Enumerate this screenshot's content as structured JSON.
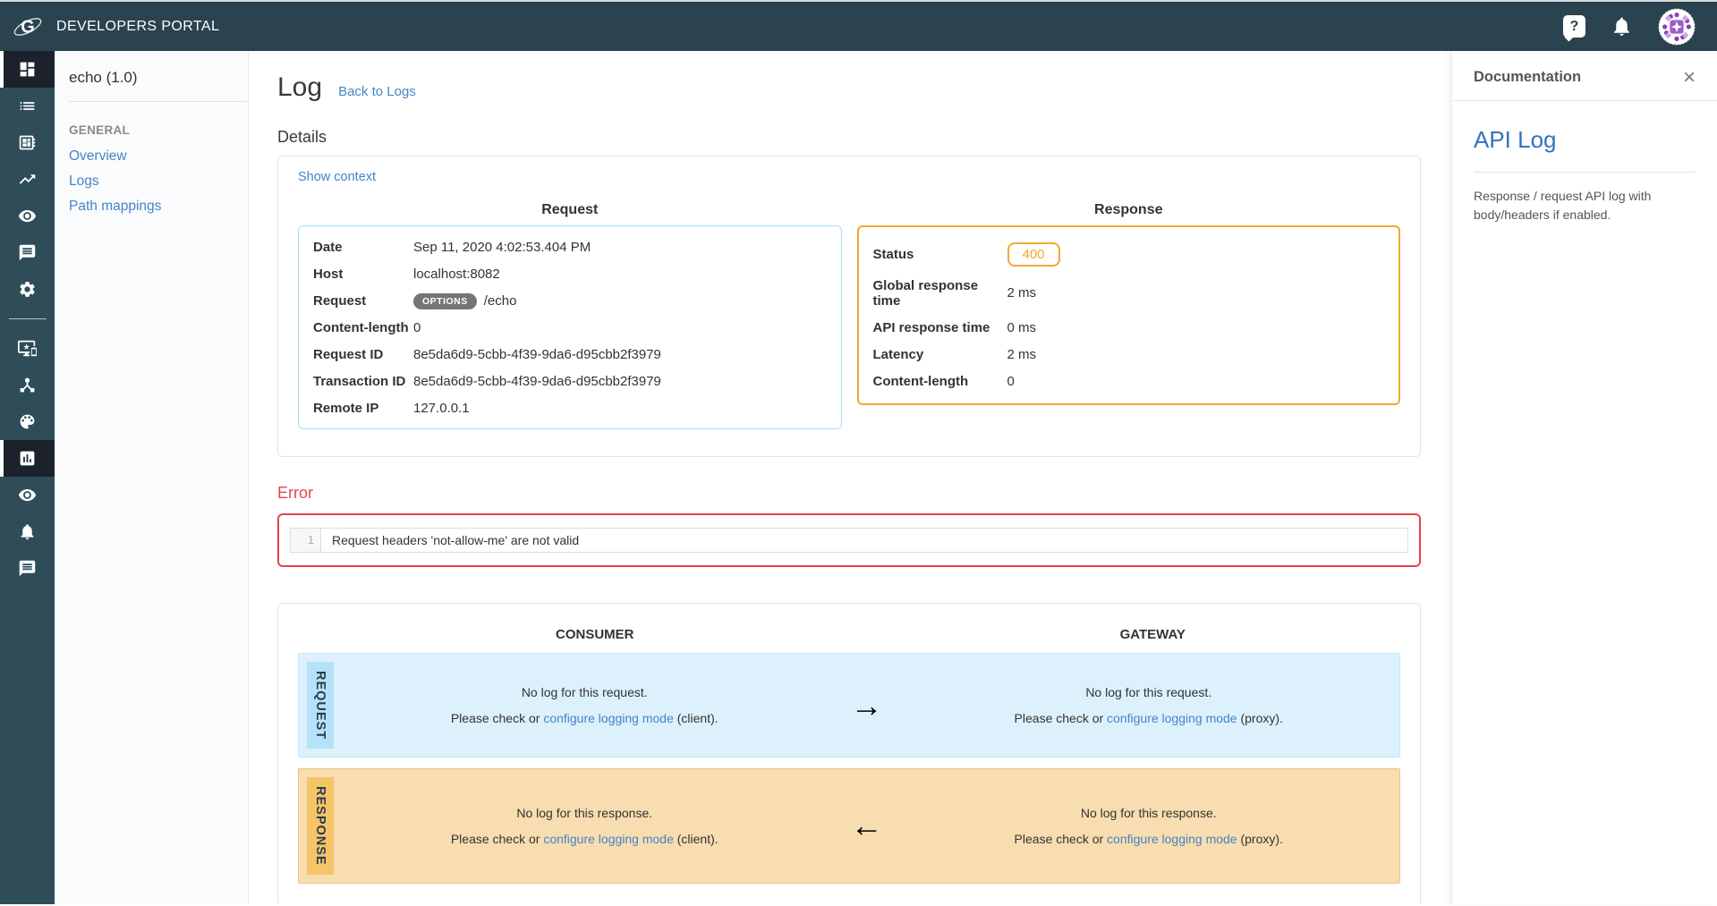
{
  "topbar": {
    "title": "DEVELOPERS PORTAL"
  },
  "rail": {
    "items": [
      {
        "icon": "dashboard",
        "name": "dashboard-icon",
        "active": true
      },
      {
        "icon": "list",
        "name": "list-icon",
        "active": false
      },
      {
        "icon": "board",
        "name": "board-icon",
        "active": false
      },
      {
        "icon": "trending",
        "name": "trending-up-icon",
        "active": false
      },
      {
        "icon": "eye",
        "name": "eye-icon",
        "active": false
      },
      {
        "icon": "message",
        "name": "chat-icon",
        "active": false
      },
      {
        "icon": "gear",
        "name": "gear-icon",
        "active": false
      },
      {
        "icon": "divider",
        "name": "rail-divider"
      },
      {
        "icon": "devices",
        "name": "devices-icon",
        "active": false
      },
      {
        "icon": "hub",
        "name": "hub-icon",
        "active": false
      },
      {
        "icon": "palette",
        "name": "palette-icon",
        "active": false
      },
      {
        "icon": "barchart",
        "name": "bar-chart-icon",
        "active": true
      },
      {
        "icon": "eye",
        "name": "eye-icon-2",
        "active": false
      },
      {
        "icon": "bell",
        "name": "bell-icon",
        "active": false
      },
      {
        "icon": "message",
        "name": "chat-icon-2",
        "active": false
      }
    ]
  },
  "sidebar": {
    "api_name": "echo (1.0)",
    "section_title": "GENERAL",
    "items": [
      {
        "label": "Overview"
      },
      {
        "label": "Logs"
      },
      {
        "label": "Path mappings"
      }
    ]
  },
  "page": {
    "title": "Log",
    "back_link": "Back to Logs",
    "details_heading": "Details",
    "show_context": "Show context"
  },
  "request": {
    "heading": "Request",
    "rows": [
      {
        "label": "Date",
        "value": "Sep 11, 2020 4:02:53.404 PM"
      },
      {
        "label": "Host",
        "value": "localhost:8082"
      },
      {
        "label": "Request",
        "badge": "OPTIONS",
        "value": "/echo"
      },
      {
        "label": "Content-length",
        "value": "0"
      },
      {
        "label": "Request ID",
        "value": "8e5da6d9-5cbb-4f39-9da6-d95cbb2f3979"
      },
      {
        "label": "Transaction ID",
        "value": "8e5da6d9-5cbb-4f39-9da6-d95cbb2f3979"
      },
      {
        "label": "Remote IP",
        "value": "127.0.0.1"
      }
    ]
  },
  "response": {
    "heading": "Response",
    "rows": [
      {
        "label": "Status",
        "status_badge": "400"
      },
      {
        "label": "Global response time",
        "value": "2 ms"
      },
      {
        "label": "API response time",
        "value": "0 ms"
      },
      {
        "label": "Latency",
        "value": "2 ms"
      },
      {
        "label": "Content-length",
        "value": "0"
      }
    ]
  },
  "error": {
    "heading": "Error",
    "line_number": "1",
    "message": "Request headers 'not-allow-me' are not valid"
  },
  "logs_panel": {
    "consumer_heading": "CONSUMER",
    "gateway_heading": "GATEWAY",
    "request_row": {
      "label": "REQUEST",
      "arrow": "→",
      "cells": [
        {
          "line1": "No log for this request.",
          "pre": "Please check or ",
          "link": "configure logging mode",
          "post": " (client)."
        },
        {
          "line1": "No log for this request.",
          "pre": "Please check or ",
          "link": "configure logging mode",
          "post": " (proxy)."
        }
      ]
    },
    "response_row": {
      "label": "RESPONSE",
      "arrow": "←",
      "cells": [
        {
          "line1": "No log for this response.",
          "pre": "Please check or ",
          "link": "configure logging mode",
          "post": " (client)."
        },
        {
          "line1": "No log for this response.",
          "pre": "Please check or ",
          "link": "configure logging mode",
          "post": " (proxy)."
        }
      ]
    }
  },
  "documentation": {
    "title": "Documentation",
    "close_icon": "×",
    "heading": "API Log",
    "body": "Response / request API log with body/headers if enabled."
  },
  "colors": {
    "topbar_bg": "#2a434e",
    "rail_bg": "#2e4d59",
    "rail_active_bg": "#1b222b",
    "link_blue": "#4584c6",
    "error_red": "#e8424e",
    "response_orange": "#f5a730",
    "request_blue_border": "#abdcf5",
    "request_row_bg": "#ddf1fc",
    "request_label_bg": "#b5e2f8",
    "response_row_bg": "#f8ddb0",
    "response_label_bg": "#f6c469"
  }
}
